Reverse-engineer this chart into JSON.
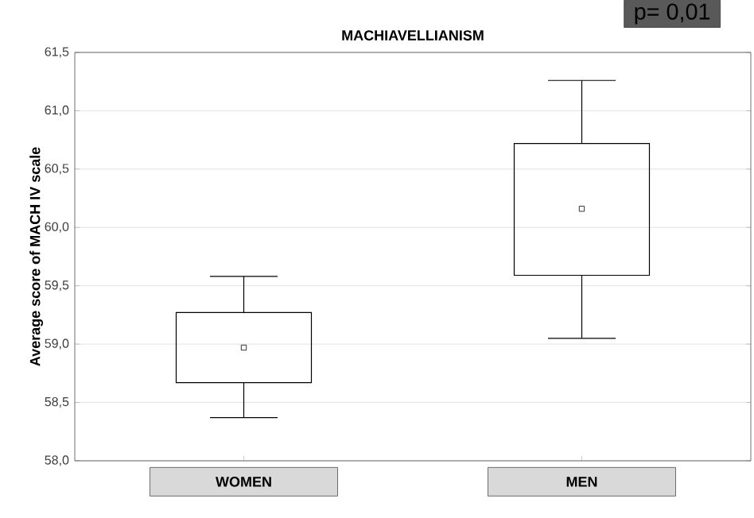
{
  "chart_data": {
    "type": "box",
    "title": "MACHIAVELLIANISM",
    "ylabel": "Average score of MACH IV scale",
    "categories": [
      "WOMEN",
      "MEN"
    ],
    "boxes": [
      {
        "low": 58.37,
        "q1": 58.67,
        "median": 58.97,
        "q3": 59.27,
        "high": 59.58
      },
      {
        "low": 59.05,
        "q1": 59.59,
        "median": 60.16,
        "q3": 60.72,
        "high": 61.26
      }
    ],
    "color": "#000000",
    "marker": "square",
    "ylim": [
      58.0,
      61.5
    ],
    "yticks": [
      {
        "value": 58.0,
        "label": "58,0"
      },
      {
        "value": 58.5,
        "label": "58,5"
      },
      {
        "value": 59.0,
        "label": "59,0"
      },
      {
        "value": 59.5,
        "label": "59,5"
      },
      {
        "value": 60.0,
        "label": "60,0"
      },
      {
        "value": 60.5,
        "label": "60,5"
      },
      {
        "value": 61.0,
        "label": "61,0"
      },
      {
        "value": 61.5,
        "label": "61,5"
      }
    ],
    "grid": "y",
    "annotations": [
      "p= 0,01"
    ]
  }
}
